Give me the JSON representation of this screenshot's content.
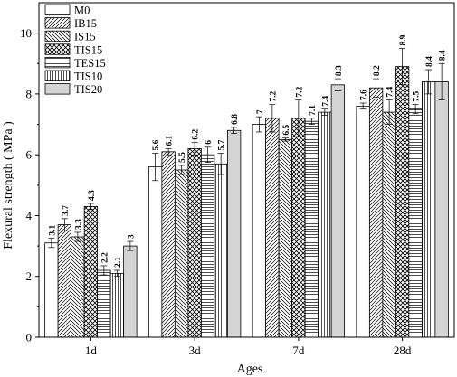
{
  "chart_data": {
    "type": "bar",
    "xlabel": "Ages",
    "ylabel": "Flexural strength ( MPa )",
    "ylim": [
      0,
      11
    ],
    "yticks": [
      0,
      2,
      4,
      6,
      8,
      10
    ],
    "grid": false,
    "legend_position": "top-left",
    "categories": [
      "1d",
      "3d",
      "7d",
      "28d"
    ],
    "series": [
      {
        "name": "M0",
        "pattern": "blank",
        "values": [
          3.1,
          5.6,
          7.0,
          7.6
        ],
        "labels": [
          "3.1",
          "5.6",
          "7",
          "7.6"
        ],
        "errors": [
          0.15,
          0.45,
          0.25,
          0.1
        ]
      },
      {
        "name": "IB15",
        "pattern": "diag-fwd",
        "values": [
          3.7,
          6.1,
          7.2,
          8.2
        ],
        "labels": [
          "3.7",
          "6.1",
          "7.2",
          "8.2"
        ],
        "errors": [
          0.2,
          0.1,
          0.45,
          0.3
        ]
      },
      {
        "name": "IS15",
        "pattern": "diag-back",
        "values": [
          3.3,
          5.5,
          6.5,
          7.4
        ],
        "labels": [
          "3.3",
          "5.5",
          "6.5",
          "7.4"
        ],
        "errors": [
          0.15,
          0.15,
          0.05,
          0.4
        ]
      },
      {
        "name": "TIS15",
        "pattern": "crosshatch",
        "values": [
          4.3,
          6.2,
          7.2,
          8.9
        ],
        "labels": [
          "4.3",
          "6.2",
          "7.2",
          "8.9"
        ],
        "errors": [
          0.1,
          0.2,
          0.6,
          0.6
        ]
      },
      {
        "name": "TES15",
        "pattern": "horizontal",
        "values": [
          2.2,
          6.0,
          7.1,
          7.5
        ],
        "labels": [
          "2.2",
          "6",
          "7.1",
          "7.5"
        ],
        "errors": [
          0.15,
          0.25,
          0.1,
          0.15
        ]
      },
      {
        "name": "TIS10",
        "pattern": "vertical",
        "values": [
          2.1,
          5.7,
          7.4,
          8.4
        ],
        "labels": [
          "2.1",
          "5.7",
          "7.4",
          "8.4"
        ],
        "errors": [
          0.1,
          0.35,
          0.1,
          0.4
        ]
      },
      {
        "name": "TIS20",
        "pattern": "gray",
        "values": [
          3.0,
          6.8,
          8.3,
          8.4
        ],
        "labels": [
          "3",
          "6.8",
          "8.3",
          "8.4"
        ],
        "errors": [
          0.15,
          0.1,
          0.2,
          0.6
        ]
      }
    ]
  }
}
